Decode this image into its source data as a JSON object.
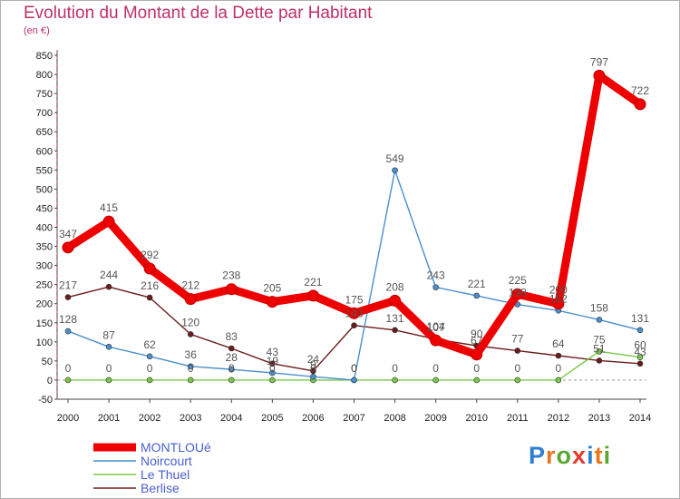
{
  "title": "Evolution du Montant de la Dette par Habitant",
  "subtitle": "(en €)",
  "logo": {
    "text": "Proxiti",
    "letter_colors": [
      "#2f7fd0",
      "#e8761e",
      "#5aa832",
      "#e33b2e",
      "#2f7fd0",
      "#e8761e",
      "#5aa832"
    ]
  },
  "chart_data": {
    "type": "line",
    "x": [
      "2000",
      "2001",
      "2002",
      "2003",
      "2004",
      "2005",
      "2006",
      "2007",
      "2008",
      "2009",
      "2010",
      "2011",
      "2012",
      "2013",
      "2014"
    ],
    "ylim": [
      -50,
      850
    ],
    "yticks": [
      "850",
      "800",
      "750",
      "700",
      "650",
      "600",
      "550",
      "500",
      "450",
      "400",
      "350",
      "300",
      "250",
      "200",
      "150",
      "100",
      "50",
      "0",
      "-50"
    ],
    "grid": false,
    "legend_position": "bottom-left",
    "series": [
      {
        "name": "MONTLOUé",
        "color": "#ee0000",
        "values": [
          347,
          415,
          292,
          212,
          238,
          205,
          221,
          175,
          208,
          104,
          67,
          225,
          200,
          797,
          722
        ],
        "labels": [
          "347",
          "415",
          "292",
          "212",
          "238",
          "205",
          "221",
          "175",
          "208",
          "104",
          "67",
          "225",
          "200",
          "797",
          "722"
        ]
      },
      {
        "name": "Noircourt",
        "color": "#4a8fcc",
        "values": [
          128,
          87,
          62,
          36,
          28,
          19,
          9,
          0,
          549,
          243,
          221,
          198,
          182,
          158,
          131
        ],
        "labels": [
          "128",
          "87",
          "62",
          "36",
          "28",
          "19",
          "9",
          "0",
          "549",
          "243",
          "221",
          "198",
          "182",
          "158",
          "131"
        ]
      },
      {
        "name": "Le Thuel",
        "color": "#78c848",
        "values": [
          0,
          0,
          0,
          0,
          0,
          0,
          0,
          0,
          0,
          0,
          0,
          0,
          0,
          75,
          60
        ],
        "labels": [
          "0",
          "0",
          "0",
          "0",
          "0",
          "0",
          "0",
          "0",
          "0",
          "0",
          "0",
          "0",
          "0",
          "75",
          "60"
        ]
      },
      {
        "name": "Berlise",
        "color": "#6b1c1c",
        "values": [
          217,
          244,
          216,
          120,
          83,
          43,
          24,
          143,
          131,
          107,
          90,
          77,
          64,
          51,
          43
        ],
        "labels": [
          "217",
          "244",
          "216",
          "120",
          "83",
          "43",
          "24",
          "143",
          "131",
          "107",
          "90",
          "77",
          "64",
          "51",
          "43"
        ]
      }
    ]
  }
}
